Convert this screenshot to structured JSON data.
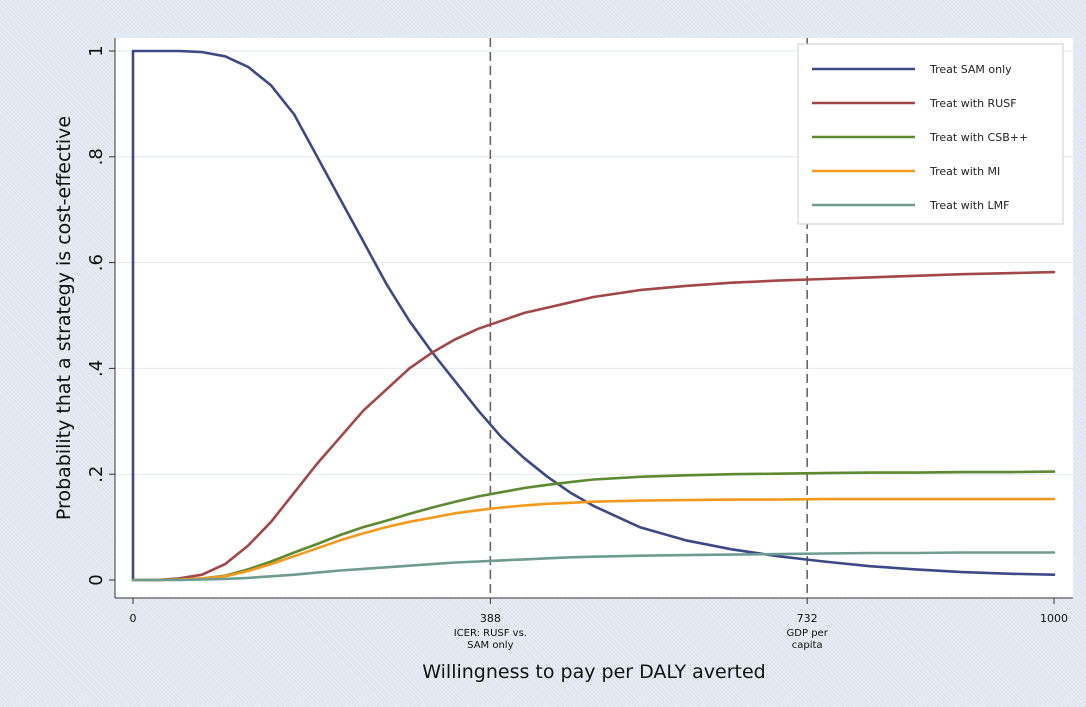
{
  "chart_data": {
    "type": "line",
    "xlabel": "Willingness to pay per DALY averted",
    "ylabel": "Probability that a strategy is cost-effective",
    "xlim": [
      0,
      1000
    ],
    "ylim": [
      0,
      1
    ],
    "x_ticks": [
      {
        "value": 0,
        "label": "0"
      },
      {
        "value": 388,
        "label": "388",
        "sublabel": [
          "ICER: RUSF vs.",
          "SAM only"
        ]
      },
      {
        "value": 732,
        "label": "732",
        "sublabel": [
          "GDP per",
          "capita"
        ]
      },
      {
        "value": 1000,
        "label": "1000"
      }
    ],
    "y_ticks": [
      {
        "value": 0,
        "label": "0"
      },
      {
        "value": 0.2,
        "label": ".2"
      },
      {
        "value": 0.4,
        "label": ".4"
      },
      {
        "value": 0.6,
        "label": ".6"
      },
      {
        "value": 0.8,
        "label": ".8"
      },
      {
        "value": 1,
        "label": "1"
      }
    ],
    "reference_lines": [
      388,
      732
    ],
    "grid": true,
    "legend_position": "top-right",
    "x": [
      0,
      25,
      50,
      75,
      100,
      125,
      150,
      175,
      200,
      225,
      250,
      275,
      300,
      325,
      350,
      375,
      400,
      425,
      450,
      475,
      500,
      550,
      600,
      650,
      700,
      750,
      800,
      850,
      900,
      950,
      1000
    ],
    "series": [
      {
        "name": "Treat SAM only",
        "color": "#3b4a85",
        "values": [
          1.0,
          1.0,
          1.0,
          0.998,
          0.99,
          0.97,
          0.935,
          0.88,
          0.8,
          0.72,
          0.64,
          0.56,
          0.49,
          0.43,
          0.375,
          0.32,
          0.27,
          0.23,
          0.195,
          0.165,
          0.14,
          0.1,
          0.075,
          0.058,
          0.045,
          0.035,
          0.026,
          0.02,
          0.015,
          0.012,
          0.01
        ]
      },
      {
        "name": "Treat with RUSF",
        "color": "#a24747",
        "values": [
          0.0,
          0.0,
          0.003,
          0.01,
          0.03,
          0.065,
          0.11,
          0.165,
          0.22,
          0.27,
          0.32,
          0.36,
          0.4,
          0.43,
          0.455,
          0.475,
          0.49,
          0.505,
          0.515,
          0.525,
          0.535,
          0.548,
          0.556,
          0.562,
          0.566,
          0.569,
          0.572,
          0.575,
          0.578,
          0.58,
          0.582
        ]
      },
      {
        "name": "Treat with CSB++",
        "color": "#5c8a30",
        "values": [
          0.0,
          0.0,
          0.001,
          0.003,
          0.008,
          0.02,
          0.035,
          0.052,
          0.068,
          0.085,
          0.1,
          0.112,
          0.125,
          0.137,
          0.148,
          0.158,
          0.166,
          0.174,
          0.18,
          0.185,
          0.19,
          0.195,
          0.198,
          0.2,
          0.201,
          0.202,
          0.203,
          0.203,
          0.204,
          0.204,
          0.205
        ]
      },
      {
        "name": "Treat with MI",
        "color": "#f39a1e",
        "values": [
          0.0,
          0.0,
          0.001,
          0.003,
          0.007,
          0.017,
          0.03,
          0.045,
          0.06,
          0.075,
          0.088,
          0.1,
          0.11,
          0.118,
          0.126,
          0.132,
          0.137,
          0.141,
          0.144,
          0.146,
          0.148,
          0.15,
          0.151,
          0.152,
          0.152,
          0.153,
          0.153,
          0.153,
          0.153,
          0.153,
          0.153
        ]
      },
      {
        "name": "Treat with LMF",
        "color": "#6d9c90",
        "values": [
          0.0,
          0.0,
          0.0,
          0.001,
          0.002,
          0.004,
          0.007,
          0.01,
          0.014,
          0.018,
          0.021,
          0.024,
          0.027,
          0.03,
          0.033,
          0.035,
          0.037,
          0.039,
          0.041,
          0.043,
          0.044,
          0.046,
          0.047,
          0.048,
          0.049,
          0.05,
          0.051,
          0.051,
          0.052,
          0.052,
          0.052
        ]
      }
    ]
  }
}
